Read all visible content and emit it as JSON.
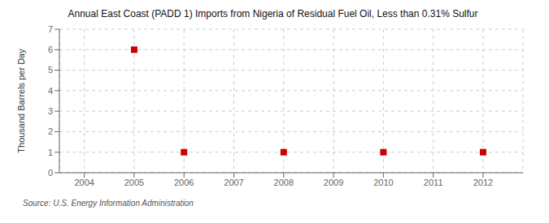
{
  "chart_data": {
    "type": "scatter",
    "title": "Annual East Coast (PADD 1) Imports from Nigeria of Residual Fuel Oil, Less than 0.31% Sulfur",
    "ylabel": "Thousand Barrels per Day",
    "annotation": "Source: U.S. Energy Information Administration",
    "x": [
      2005,
      2006,
      2008,
      2010,
      2012
    ],
    "values": [
      6,
      1,
      1,
      1,
      1
    ],
    "color": "#CC0000",
    "marker": "square",
    "xlim": [
      2003.5,
      2012.8
    ],
    "ylim": [
      0,
      7
    ],
    "xticks": [
      2004,
      2005,
      2006,
      2007,
      2008,
      2009,
      2010,
      2011,
      2012
    ],
    "yticks": [
      0,
      1,
      2,
      3,
      4,
      5,
      6,
      7
    ],
    "grid": true
  }
}
